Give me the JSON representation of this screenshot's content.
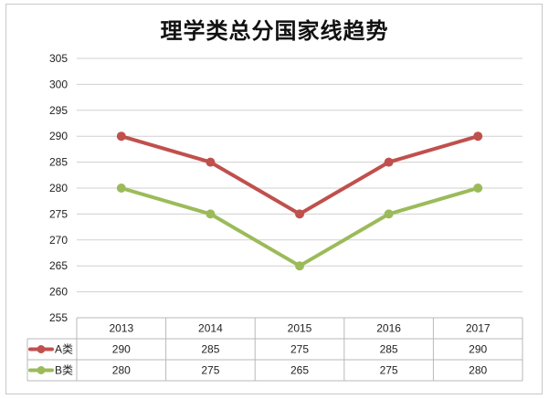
{
  "chart_data": {
    "type": "line",
    "title": "理学类总分国家线趋势",
    "categories": [
      "2013",
      "2014",
      "2015",
      "2016",
      "2017"
    ],
    "series": [
      {
        "name": "A类",
        "values": [
          290,
          285,
          275,
          285,
          290
        ],
        "color": "#c0504d"
      },
      {
        "name": "B类",
        "values": [
          280,
          275,
          265,
          275,
          280
        ],
        "color": "#9bbb59"
      }
    ],
    "y_ticks": [
      255,
      260,
      265,
      270,
      275,
      280,
      285,
      290,
      295,
      300,
      305
    ],
    "ylim": [
      255,
      305
    ],
    "grid": true,
    "legend": "data-table"
  }
}
